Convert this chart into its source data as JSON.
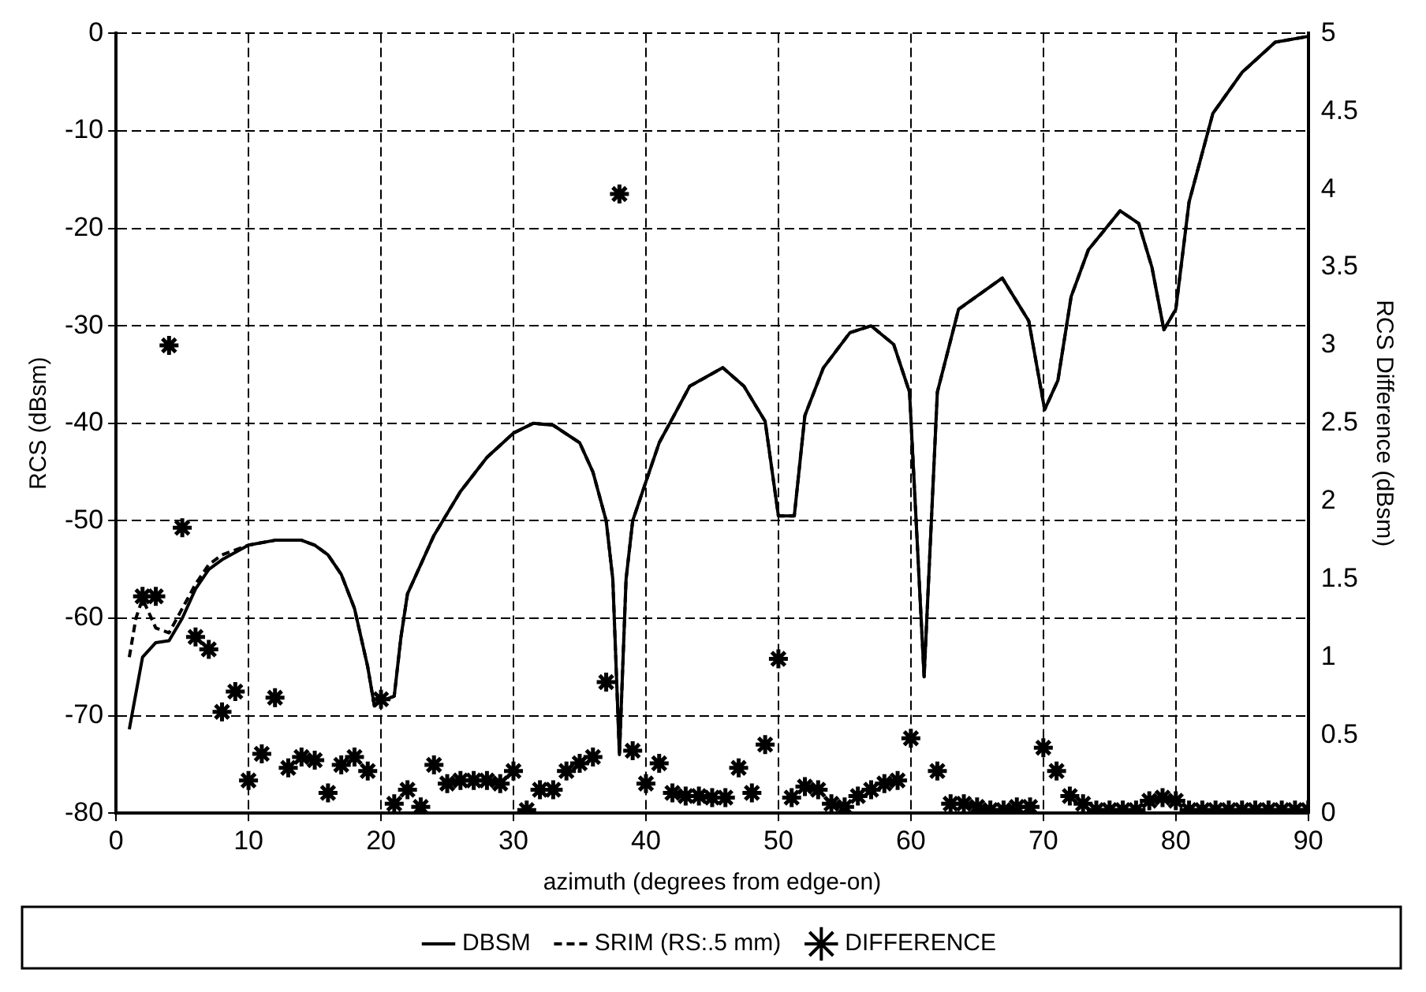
{
  "chart_data": {
    "type": "line",
    "xlabel": "azimuth (degrees from edge-on)",
    "ylabel": "RCS (dBsm)",
    "y2label": "RCS Difference (dBsm)",
    "xlim": [
      0,
      90
    ],
    "xticks": [
      0,
      10,
      20,
      30,
      40,
      50,
      60,
      70,
      80,
      90
    ],
    "ylim": [
      -80,
      0
    ],
    "yticks": [
      -80,
      -70,
      -60,
      -50,
      -40,
      -30,
      -20,
      -10,
      0
    ],
    "y2lim": [
      0,
      5
    ],
    "y2ticks": [
      0,
      0.5,
      1,
      1.5,
      2,
      2.5,
      3,
      3.5,
      4,
      4.5,
      5
    ],
    "grid": true,
    "legend": "bottom",
    "series": [
      {
        "name": "DBSM",
        "color": "#000000",
        "line_style": "solid",
        "marker": "none",
        "x": [
          1,
          2,
          3,
          4,
          5,
          6,
          7,
          8,
          10,
          12,
          14,
          15,
          16,
          17,
          18,
          19,
          19.5,
          20,
          21,
          21.5,
          22,
          24,
          26,
          28,
          30,
          31.5,
          33,
          35,
          36,
          37,
          37.5,
          38,
          38.5,
          39,
          40,
          41,
          42,
          43.3,
          45.8,
          47.4,
          49,
          50,
          51.2,
          52,
          53.4,
          55.4,
          57,
          58.7,
          59.9,
          61,
          62,
          63.6,
          66.9,
          68.9,
          70.1,
          71.1,
          72.1,
          73.4,
          75.8,
          77.2,
          78.2,
          79.1,
          80,
          81,
          82.8,
          85,
          87.5,
          90
        ],
        "values": [
          -71.4,
          -64,
          -62.5,
          -62.3,
          -60,
          -57,
          -55,
          -54,
          -52.5,
          -52,
          -52,
          -52.5,
          -53.5,
          -55.5,
          -59,
          -65,
          -69,
          -68.5,
          -68,
          -62,
          -57.5,
          -51.5,
          -47,
          -43.5,
          -41,
          -40,
          -40.2,
          -42,
          -45,
          -50,
          -56,
          -74,
          -56,
          -50,
          -46,
          -42,
          -39.5,
          -36.2,
          -34.3,
          -36.2,
          -39.8,
          -49.5,
          -49.5,
          -39.2,
          -34.3,
          -30.7,
          -30,
          -31.9,
          -36.8,
          -66,
          -36.8,
          -28.3,
          -25.1,
          -29.5,
          -38.6,
          -35.6,
          -27,
          -22.2,
          -18.2,
          -19.5,
          -24,
          -30.4,
          -28.3,
          -17.3,
          -8.2,
          -4,
          -0.9,
          -0.3
        ]
      },
      {
        "name": "SRIM (RS:.5 mm)",
        "color": "#000000",
        "line_style": "dashed",
        "marker": "none",
        "x": [
          1,
          1.5,
          2,
          3,
          4,
          5,
          6,
          7,
          8,
          10,
          12,
          14,
          15,
          16,
          17,
          18,
          19,
          19.5,
          20,
          21,
          21.5,
          22,
          24,
          26,
          28,
          30,
          31.5,
          33,
          35,
          36,
          37,
          37.5,
          38,
          38.5,
          39,
          40,
          41,
          42,
          43.3,
          45.8,
          47.4,
          49,
          50,
          51.2,
          52,
          53.4,
          55.4,
          57,
          58.7,
          59.9,
          61,
          62,
          63.6,
          66.9,
          68.9,
          70.1,
          71.1,
          72.1,
          73.4,
          75.8,
          77.2,
          78.2,
          79.1,
          80,
          81,
          82.8,
          85,
          87.5,
          90
        ],
        "values": [
          -64,
          -60,
          -58,
          -61,
          -61.5,
          -59,
          -56.5,
          -54.5,
          -53.5,
          -52.5,
          -52,
          -52,
          -52.5,
          -53.5,
          -55.5,
          -59,
          -65,
          -69,
          -68.5,
          -68,
          -62,
          -57.5,
          -51.5,
          -47,
          -43.5,
          -41,
          -40,
          -40.2,
          -42,
          -45,
          -50,
          -56,
          -74,
          -56,
          -50,
          -46,
          -42,
          -39.5,
          -36.2,
          -34.3,
          -36.2,
          -39.8,
          -49.5,
          -49.5,
          -39.2,
          -34.3,
          -30.7,
          -30,
          -31.9,
          -36.8,
          -66,
          -36.8,
          -28.3,
          -25.1,
          -29.5,
          -38.6,
          -35.6,
          -27,
          -22.2,
          -18.2,
          -19.5,
          -24,
          -30.4,
          -28.3,
          -17.3,
          -8.2,
          -4,
          -0.9,
          -0.3
        ]
      },
      {
        "name": "DIFFERENCE",
        "type": "scatter",
        "axis": "y2",
        "color": "#000000",
        "marker": "cross",
        "x": [
          2,
          3,
          4,
          5,
          6,
          7,
          8,
          9,
          10,
          11,
          12,
          13,
          14,
          15,
          16,
          17,
          18,
          19,
          20,
          21,
          22,
          23,
          24,
          25,
          26,
          27,
          28,
          29,
          30,
          31,
          32,
          33,
          34,
          35,
          36,
          37,
          38,
          39,
          40,
          41,
          42,
          43,
          44,
          45,
          46,
          47,
          48,
          49,
          50,
          51,
          52,
          53,
          54,
          55,
          56,
          57,
          58,
          59,
          60,
          62,
          63,
          64,
          65,
          66,
          67,
          68,
          69,
          70,
          71,
          72,
          73,
          74,
          75,
          76,
          77,
          78,
          79,
          80,
          81,
          82,
          83,
          84,
          85,
          86,
          87,
          88,
          89,
          90
        ],
        "values": [
          1.39,
          1.39,
          3.0,
          1.83,
          1.13,
          1.05,
          0.65,
          0.78,
          0.21,
          0.38,
          0.74,
          0.29,
          0.36,
          0.34,
          0.13,
          0.31,
          0.36,
          0.27,
          0.73,
          0.06,
          0.15,
          0.04,
          0.31,
          0.19,
          0.21,
          0.21,
          0.21,
          0.19,
          0.27,
          0.02,
          0.15,
          0.15,
          0.27,
          0.32,
          0.36,
          0.84,
          3.97,
          0.4,
          0.19,
          0.32,
          0.13,
          0.11,
          0.11,
          0.1,
          0.1,
          0.29,
          0.13,
          0.44,
          0.99,
          0.1,
          0.17,
          0.15,
          0.06,
          0.04,
          0.11,
          0.15,
          0.19,
          0.21,
          0.48,
          0.27,
          0.06,
          0.06,
          0.04,
          0.02,
          0.02,
          0.04,
          0.04,
          0.42,
          0.27,
          0.11,
          0.06,
          0.02,
          0.02,
          0.02,
          0.02,
          0.08,
          0.1,
          0.08,
          0.02,
          0.02,
          0.02,
          0.02,
          0.02,
          0.02,
          0.02,
          0.02,
          0.02,
          0.02
        ]
      }
    ]
  }
}
